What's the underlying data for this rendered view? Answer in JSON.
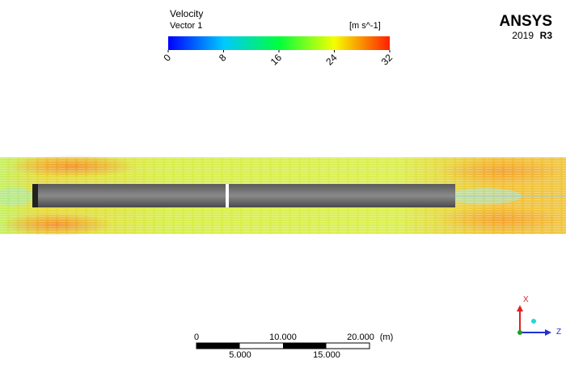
{
  "legend": {
    "title": "Velocity",
    "subtitle": "Vector 1",
    "unit": "[m s^-1]",
    "ticks": [
      0,
      8,
      16,
      24,
      32
    ]
  },
  "logo": {
    "name": "ANSYS",
    "version": "2019",
    "release": "R3"
  },
  "scale_bar": {
    "top_labels": [
      "0",
      "10.000",
      "20.000"
    ],
    "unit": "(m)",
    "bottom_labels": [
      "5.000",
      "15.000"
    ]
  },
  "axes": {
    "x": "X",
    "z": "Z"
  }
}
